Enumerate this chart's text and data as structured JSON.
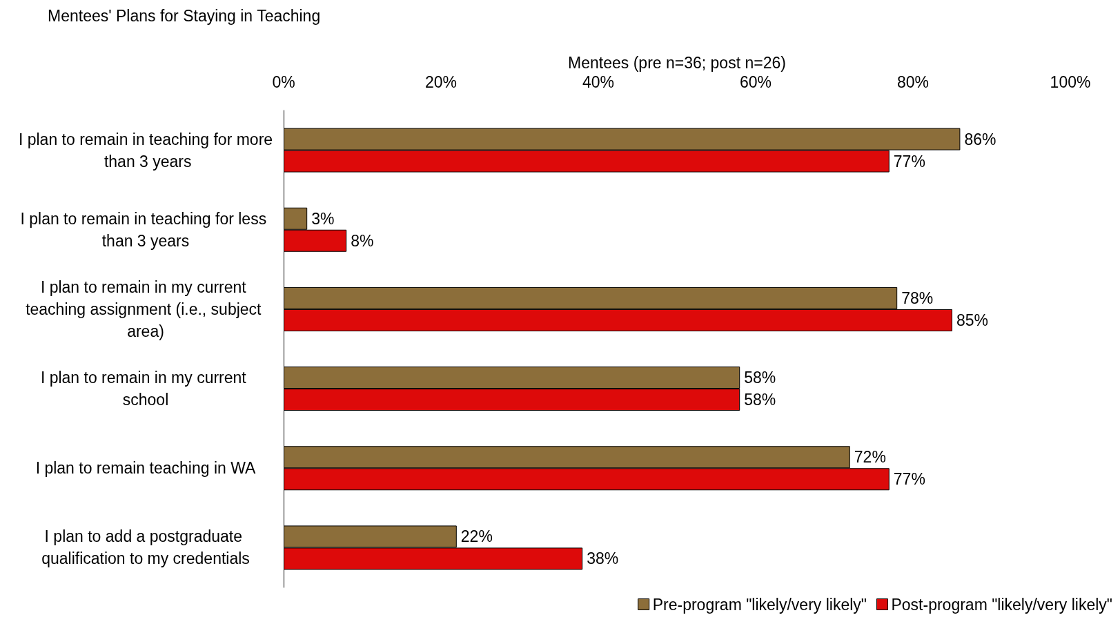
{
  "chart_data": {
    "type": "bar",
    "orientation": "horizontal",
    "title": "Mentees' Plans for Staying in Teaching",
    "xlabel": "Mentees (pre n=36; post n=26)",
    "categories": [
      "I plan to remain in teaching for more than 3 years",
      "I plan to remain in teaching for less than 3 years",
      "I plan to remain in my current teaching assignment (i.e., subject area)",
      "I plan to remain in my current school",
      "I plan to remain teaching in WA",
      "I plan to add a postgraduate qualification to my credentials"
    ],
    "series": [
      {
        "name": "Pre-program \"likely/very likely\"",
        "color": "#8c6e3a",
        "values": [
          86,
          3,
          78,
          58,
          72,
          22
        ],
        "value_labels": [
          "86%",
          "3%",
          "78%",
          "58%",
          "72%",
          "22%"
        ]
      },
      {
        "name": "Post-program \"likely/very likely\"",
        "color": "#dd0a0a",
        "values": [
          77,
          8,
          85,
          58,
          77,
          38
        ],
        "value_labels": [
          "77%",
          "8%",
          "85%",
          "58%",
          "77%",
          "38%"
        ]
      }
    ],
    "xlim": [
      0,
      100
    ],
    "xticks": [
      {
        "value": 0,
        "label": "0%"
      },
      {
        "value": 20,
        "label": "20%"
      },
      {
        "value": 40,
        "label": "40%"
      },
      {
        "value": 60,
        "label": "60%"
      },
      {
        "value": 80,
        "label": "80%"
      },
      {
        "value": 100,
        "label": "100%"
      }
    ],
    "grid": false,
    "legend": "bottom right"
  }
}
